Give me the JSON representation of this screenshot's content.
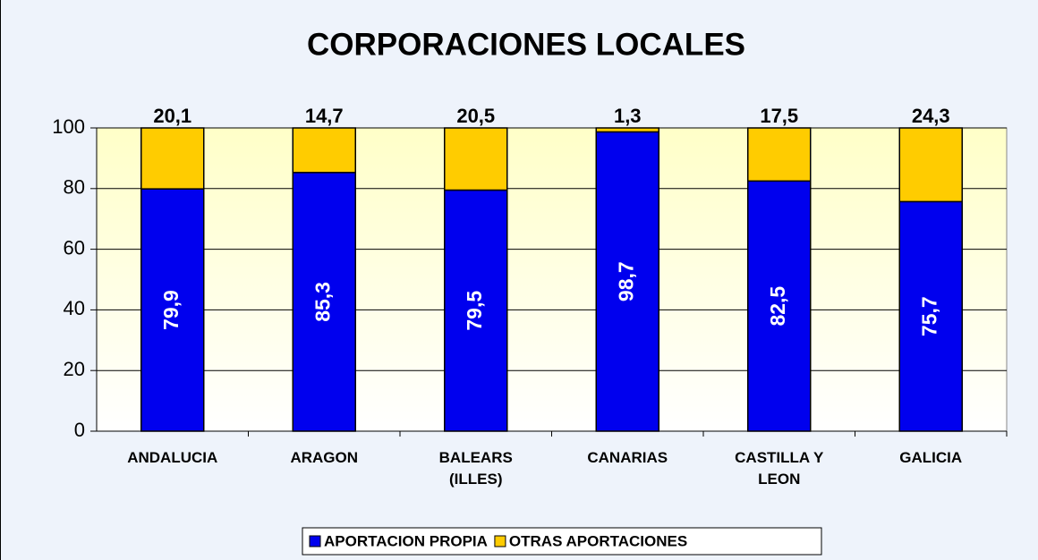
{
  "chart_data": {
    "type": "stacked_bar",
    "title": "CORPORACIONES LOCALES",
    "categories": [
      "ANDALUCIA",
      "ARAGON",
      "BALEARS (ILLES)",
      "CANARIAS",
      "CASTILLA Y LEON",
      "GALICIA"
    ],
    "series": [
      {
        "name": "APORTACION PROPIA",
        "color": "#0000ee",
        "values": [
          79.9,
          85.3,
          79.5,
          98.7,
          82.5,
          75.7
        ],
        "value_labels": [
          "79,9",
          "85,3",
          "79,5",
          "98,7",
          "82,5",
          "75,7"
        ]
      },
      {
        "name": "OTRAS APORTACIONES",
        "color": "#ffcc00",
        "values": [
          20.1,
          14.7,
          20.5,
          1.3,
          17.5,
          24.3
        ],
        "value_labels": [
          "20,1",
          "14,7",
          "20,5",
          "1,3",
          "17,5",
          "24,3"
        ]
      }
    ],
    "ylim": [
      0,
      100
    ],
    "yticks": [
      0,
      20,
      40,
      60,
      80,
      100
    ],
    "grid": true,
    "legend": "bottom"
  }
}
